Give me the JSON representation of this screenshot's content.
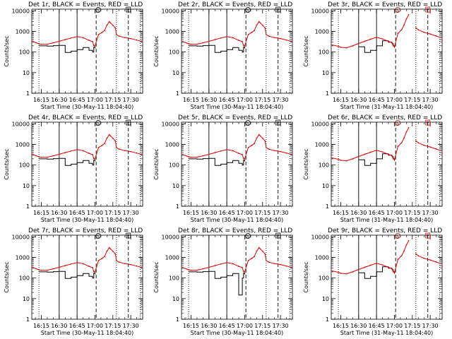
{
  "panels": [
    {
      "title": "Det 1r, BLACK = Events, RED = LLD",
      "start_time": "Start Time (30-May-11 18:04:40)"
    },
    {
      "title": "Det 2r, BLACK = Events, RED = LLD",
      "start_time": "Start Time (30-May-11 18:04:40)"
    },
    {
      "title": "Det 3r, BLACK = Events, RED = LLD",
      "start_time": "Start Time (31-May-11 18:04:40)"
    },
    {
      "title": "Det 4r, BLACK = Events, RED = LLD",
      "start_time": "Start Time (30-May-11 18:04:40)"
    },
    {
      "title": "Det 5r, BLACK = Events, RED = LLD",
      "start_time": "Start Time (30-May-11 18:04:40)"
    },
    {
      "title": "Det 6r, BLACK = Events, RED = LLD",
      "start_time": "Start Time (31-May-11 18:04:40)"
    },
    {
      "title": "Det 7r, BLACK = Events, RED = LLD",
      "start_time": "Start Time (30-May-11 18:04:40)"
    },
    {
      "title": "Det 8r, BLACK = Events, RED = LLD",
      "start_time": "Start Time (30-May-11 18:04:40)"
    },
    {
      "title": "Det 9r, BLACK = Events, RED = LLD",
      "start_time": "Start Time (31-May-11 18:04:40)"
    }
  ],
  "ylabel": "Counts/sec",
  "marker_letters": [
    "S",
    "F"
  ],
  "colors": {
    "events": "#000000",
    "lld": "#dd0000"
  },
  "chart_data": {
    "type": "line",
    "layout": "3x3 grid of panels",
    "y_scale": "log",
    "ylim": [
      1,
      12000
    ],
    "y_ticks": [
      "1",
      "10",
      "100",
      "1000",
      "10000"
    ],
    "x_ticks": [
      "16:15",
      "16:30",
      "16:45",
      "17:00",
      "17:15",
      "17:30"
    ],
    "x_range": [
      "16:07",
      "17:40"
    ],
    "x": [
      "16:08",
      "16:13",
      "16:15",
      "16:20",
      "16:25",
      "16:30",
      "16:35",
      "16:40",
      "16:45",
      "16:50",
      "16:55",
      "16:58",
      "16:59",
      "17:00",
      "17:03",
      "17:06",
      "17:08",
      "17:10",
      "17:12",
      "17:13",
      "17:15",
      "17:17",
      "17:18",
      "17:20",
      "17:25",
      "17:30",
      "17:35",
      "17:39"
    ],
    "vertical_lines": {
      "dotted": [
        "16:13",
        "17:18",
        "17:38"
      ],
      "solid": [
        "16:30",
        "16:45"
      ],
      "dashed": [
        "17:01",
        "17:28"
      ]
    },
    "series": [
      {
        "name": "BLACK = Events",
        "panels": {
          "normal": [
            null,
            200,
            200,
            195,
            205,
            210,
            95,
            110,
            130,
            165,
            120,
            100,
            175,
            150,
            null,
            null,
            null,
            null,
            null,
            null,
            null,
            null,
            null,
            null,
            null,
            null,
            null,
            null
          ],
          "panel_8": [
            null,
            200,
            200,
            195,
            205,
            210,
            95,
            110,
            130,
            165,
            15,
            100,
            175,
            150,
            null,
            null,
            null,
            null,
            null,
            null,
            null,
            null,
            null,
            null,
            null,
            null,
            null,
            null
          ],
          "late_day": [
            null,
            null,
            null,
            null,
            null,
            180,
            95,
            120,
            200,
            350,
            300,
            250,
            200,
            160,
            null,
            null,
            null,
            null,
            null,
            null,
            null,
            null,
            null,
            null,
            null,
            null,
            null,
            null
          ]
        }
      },
      {
        "name": "RED = LLD",
        "panels": {
          "normal": [
            320,
            250,
            240,
            240,
            280,
            330,
            400,
            480,
            560,
            500,
            370,
            320,
            210,
            200,
            700,
            900,
            1100,
            2000,
            3000,
            2600,
            2000,
            1500,
            700,
            600,
            500,
            450,
            380,
            330
          ],
          "late_day": [
            220,
            190,
            170,
            160,
            200,
            260,
            330,
            420,
            520,
            430,
            330,
            280,
            200,
            180,
            800,
            1200,
            2000,
            4000,
            6500,
            null,
            null,
            null,
            1500,
            1200,
            900,
            750,
            600,
            500
          ]
        }
      }
    ]
  }
}
